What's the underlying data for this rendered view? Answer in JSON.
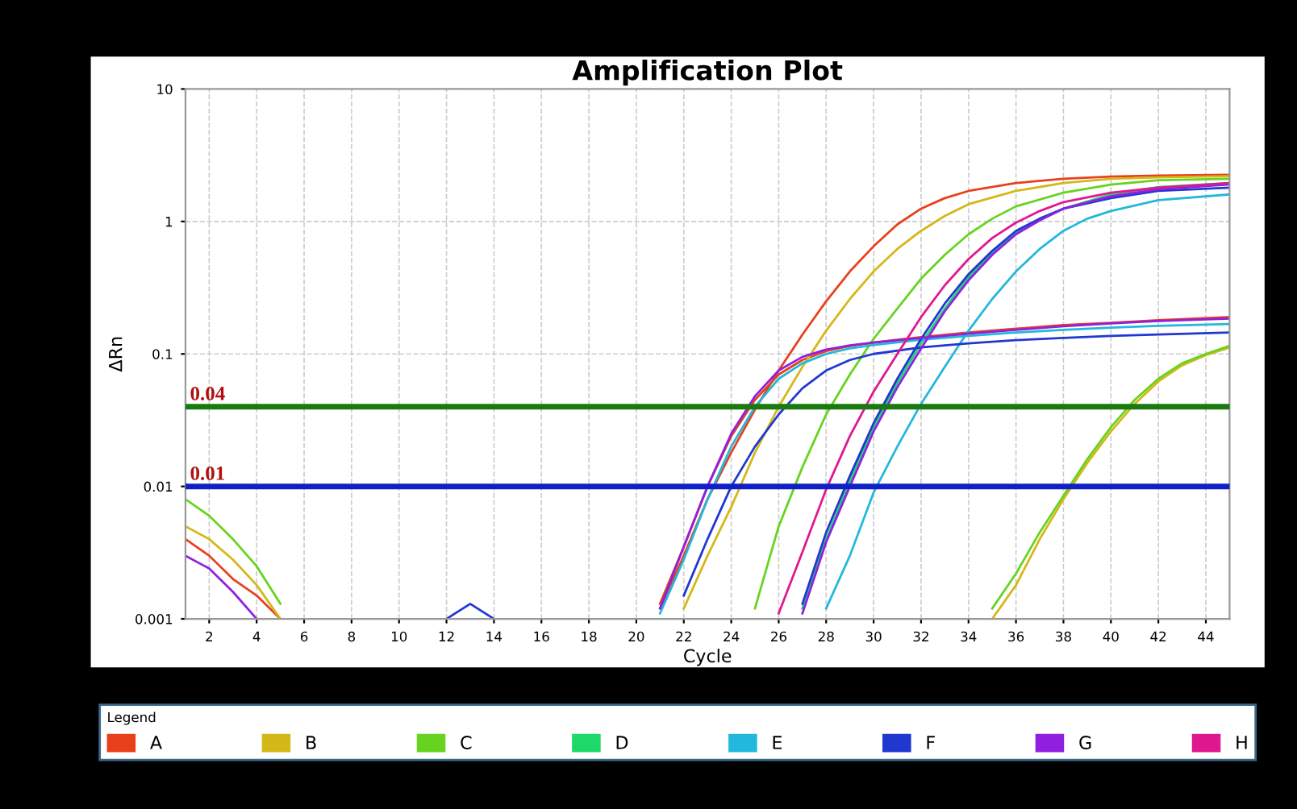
{
  "chart_data": {
    "type": "line",
    "title": "Amplification Plot",
    "xlabel": "Cycle",
    "ylabel": "ΔRn",
    "legend_title": "Legend",
    "log": "y",
    "xlim": [
      1,
      45
    ],
    "ylim": [
      0.001,
      10
    ],
    "xticks": [
      2,
      4,
      6,
      8,
      10,
      12,
      14,
      16,
      18,
      20,
      22,
      24,
      26,
      28,
      30,
      32,
      34,
      36,
      38,
      40,
      42,
      44
    ],
    "yticks": [
      0.001,
      0.01,
      0.1,
      1,
      10
    ],
    "grid": true,
    "legend": "bottom",
    "marker": "none",
    "line_style": "solid",
    "ref_lines": [
      {
        "axis": "y",
        "value": 0.04,
        "label": "0.04",
        "color": "#1a7a10"
      },
      {
        "axis": "y",
        "value": 0.01,
        "label": "0.01",
        "color": "#1020c8"
      }
    ],
    "series": [
      {
        "name": "A",
        "color": "#e8401c",
        "x": [
          21,
          22,
          23,
          24,
          25,
          26,
          27,
          28,
          29,
          30,
          31,
          32,
          33,
          34,
          36,
          38,
          40,
          42,
          45
        ],
        "values": [
          0.0012,
          0.003,
          0.008,
          0.018,
          0.038,
          0.075,
          0.14,
          0.25,
          0.42,
          0.65,
          0.95,
          1.25,
          1.5,
          1.7,
          1.95,
          2.1,
          2.18,
          2.22,
          2.25
        ]
      },
      {
        "color": "#e8401c",
        "x": [
          1,
          2,
          3,
          4,
          5,
          6,
          21,
          22,
          23,
          24,
          25,
          26,
          27,
          28,
          29,
          30,
          31,
          32,
          34,
          36,
          38,
          40,
          42,
          45
        ],
        "values": [
          0.004,
          0.003,
          0.002,
          0.0015,
          0.001,
          null,
          0.0013,
          0.0035,
          0.01,
          0.024,
          0.045,
          0.07,
          0.09,
          0.105,
          0.115,
          0.122,
          0.128,
          0.134,
          0.145,
          0.155,
          0.165,
          0.172,
          0.18,
          0.19
        ]
      },
      {
        "name": "B",
        "color": "#d4b81a",
        "x": [
          22,
          23,
          24,
          25,
          26,
          27,
          28,
          29,
          30,
          31,
          32,
          33,
          34,
          36,
          38,
          40,
          42,
          45
        ],
        "values": [
          0.0012,
          0.003,
          0.007,
          0.018,
          0.04,
          0.08,
          0.15,
          0.26,
          0.42,
          0.62,
          0.85,
          1.1,
          1.35,
          1.7,
          1.95,
          2.1,
          2.15,
          2.2
        ]
      },
      {
        "color": "#d4b81a",
        "x": [
          1,
          2,
          3,
          4,
          5,
          6,
          35,
          36,
          37,
          38,
          39,
          40,
          41,
          42,
          43,
          44,
          45
        ],
        "values": [
          0.005,
          0.004,
          0.0028,
          0.0018,
          0.001,
          null,
          0.001,
          0.0018,
          0.004,
          0.008,
          0.015,
          0.026,
          0.042,
          0.062,
          0.082,
          0.098,
          0.112
        ]
      },
      {
        "name": "C",
        "color": "#66d41e",
        "x": [
          1,
          2,
          3,
          4,
          5,
          6,
          25,
          26,
          27,
          28,
          29,
          30,
          31,
          32,
          33,
          34,
          35,
          36,
          38,
          40,
          42,
          45
        ],
        "values": [
          0.008,
          0.006,
          0.004,
          0.0025,
          0.0013,
          null,
          0.0012,
          0.005,
          0.014,
          0.035,
          0.07,
          0.13,
          0.22,
          0.37,
          0.56,
          0.8,
          1.05,
          1.3,
          1.65,
          1.9,
          2.05,
          2.1
        ]
      },
      {
        "color": "#66d41e",
        "x": [
          35,
          36,
          37,
          38,
          39,
          40,
          41,
          42,
          43,
          44,
          45
        ],
        "values": [
          0.0012,
          0.0022,
          0.0045,
          0.0085,
          0.016,
          0.028,
          0.045,
          0.065,
          0.085,
          0.1,
          0.115
        ]
      },
      {
        "name": "D",
        "color": "#1ed86a",
        "x": [
          27,
          28,
          29,
          30,
          31,
          32,
          33,
          34,
          35,
          36,
          37,
          38,
          40,
          42,
          45
        ],
        "values": [
          0.0012,
          0.004,
          0.011,
          0.028,
          0.06,
          0.12,
          0.22,
          0.38,
          0.58,
          0.82,
          1.05,
          1.25,
          1.6,
          1.82,
          1.95
        ]
      },
      {
        "name": "E",
        "color": "#22b8dc",
        "x": [
          28,
          29,
          30,
          31,
          32,
          33,
          34,
          35,
          36,
          37,
          38,
          39,
          40,
          42,
          45
        ],
        "values": [
          0.0012,
          0.003,
          0.009,
          0.02,
          0.042,
          0.08,
          0.15,
          0.26,
          0.42,
          0.62,
          0.85,
          1.05,
          1.2,
          1.45,
          1.6
        ]
      },
      {
        "color": "#22b8dc",
        "x": [
          21,
          22,
          23,
          24,
          25,
          26,
          27,
          28,
          29,
          30,
          32,
          34,
          36,
          38,
          40,
          42,
          45
        ],
        "values": [
          0.0011,
          0.0028,
          0.008,
          0.02,
          0.04,
          0.065,
          0.085,
          0.1,
          0.11,
          0.117,
          0.128,
          0.137,
          0.145,
          0.152,
          0.158,
          0.163,
          0.168
        ]
      },
      {
        "name": "F",
        "color": "#2038d0",
        "x": [
          27,
          28,
          29,
          30,
          31,
          32,
          33,
          34,
          35,
          36,
          37,
          38,
          40,
          42,
          45
        ],
        "values": [
          0.0013,
          0.0045,
          0.012,
          0.03,
          0.065,
          0.13,
          0.24,
          0.4,
          0.6,
          0.85,
          1.05,
          1.25,
          1.5,
          1.7,
          1.8
        ]
      },
      {
        "color": "#2038d0",
        "x": [
          12,
          13,
          14,
          15,
          22,
          23,
          24,
          25,
          26,
          27,
          28,
          29,
          30,
          32,
          34,
          36,
          38,
          40,
          42,
          45
        ],
        "values": [
          0.001,
          0.0013,
          0.001,
          null,
          0.0015,
          0.004,
          0.01,
          0.02,
          0.035,
          0.055,
          0.075,
          0.09,
          0.1,
          0.112,
          0.12,
          0.127,
          0.132,
          0.137,
          0.14,
          0.145
        ]
      },
      {
        "name": "G",
        "color": "#9020e0",
        "x": [
          1,
          2,
          3,
          4,
          5,
          27,
          28,
          29,
          30,
          31,
          32,
          33,
          34,
          35,
          36,
          37,
          38,
          40,
          42,
          45
        ],
        "values": [
          0.003,
          0.0024,
          0.0016,
          0.001,
          null,
          0.0011,
          0.0038,
          0.01,
          0.026,
          0.056,
          0.11,
          0.21,
          0.36,
          0.56,
          0.8,
          1.02,
          1.25,
          1.55,
          1.75,
          1.9
        ]
      },
      {
        "color": "#9020e0",
        "x": [
          21,
          22,
          23,
          24,
          25,
          26,
          27,
          28,
          29,
          30,
          32,
          34,
          36,
          38,
          40,
          42,
          45
        ],
        "values": [
          0.0012,
          0.0035,
          0.01,
          0.025,
          0.048,
          0.075,
          0.095,
          0.108,
          0.116,
          0.122,
          0.132,
          0.142,
          0.152,
          0.162,
          0.17,
          0.177,
          0.185
        ]
      },
      {
        "name": "H",
        "color": "#e01890",
        "x": [
          26,
          27,
          28,
          29,
          30,
          31,
          32,
          33,
          34,
          35,
          36,
          37,
          38,
          40,
          42,
          45
        ],
        "values": [
          0.0011,
          0.0032,
          0.0095,
          0.024,
          0.052,
          0.1,
          0.19,
          0.33,
          0.52,
          0.75,
          0.98,
          1.2,
          1.4,
          1.65,
          1.8,
          1.95
        ]
      }
    ]
  }
}
